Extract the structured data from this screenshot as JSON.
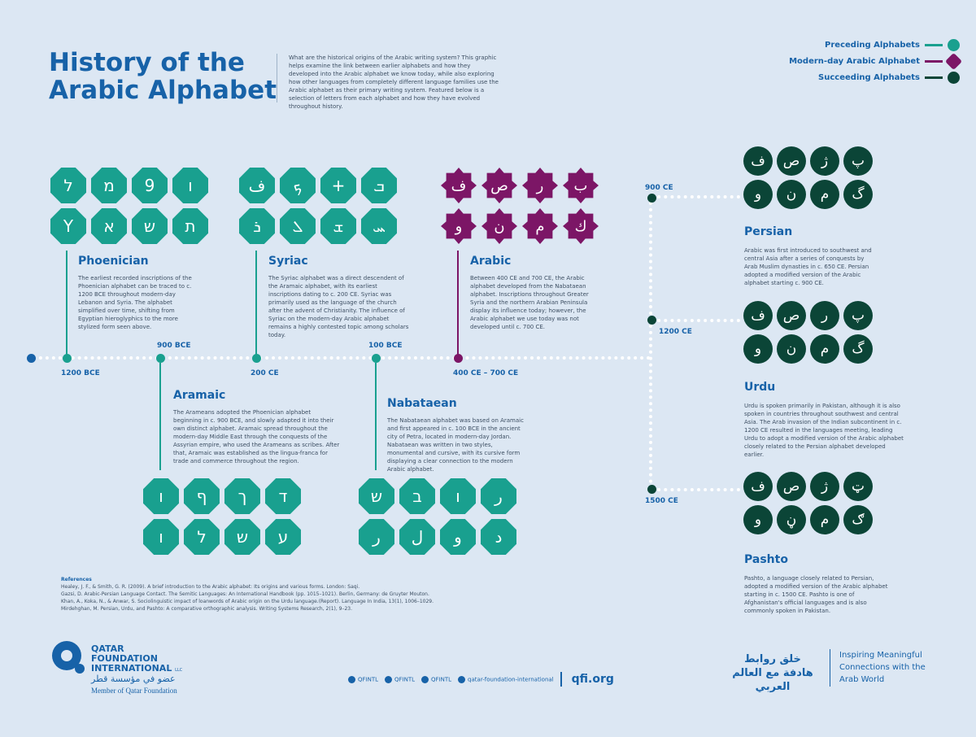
{
  "title": "History of the Arabic Alphabet",
  "intro": "What are the historical origins of the Arabic writing system? This graphic helps examine the link between earlier alphabets and how they developed into the Arabic alphabet we know today, while also exploring how other languages from completely different language families use the Arabic alphabet as their primary writing system. Featured below is a selection of letters from each alphabet and how they have evolved throughout history.",
  "legend": [
    {
      "label": "Preceding Alphabets",
      "color": "#19a08f"
    },
    {
      "label": "Modern-day Arabic Alphabet",
      "color": "#7c1666"
    },
    {
      "label": "Succeeding Alphabets",
      "color": "#0b4537"
    }
  ],
  "timeline": {
    "dates": [
      "1200 BCE",
      "900 BCE",
      "200 CE",
      "100 BCE",
      "400 CE – 700 CE",
      "900 CE",
      "1200 CE",
      "1500 CE"
    ]
  },
  "sections": {
    "phoenician": {
      "name": "Phoenician",
      "text": "The earliest recorded inscriptions of the Phoenician alphabet can be traced to c. 1200 BCE throughout modern-day Lebanon and Syria. The alphabet simplified over time, shifting from Egyptian hieroglyphics to the more stylized form seen above.",
      "letters": [
        "ל",
        "מ",
        "9",
        "ו",
        "Y",
        "א",
        "ש",
        "ת"
      ]
    },
    "syriac": {
      "name": "Syriac",
      "text": "The Syriac alphabet was a direct descendent of the Aramaic alphabet, with its earliest inscriptions dating to c. 200 CE. Syriac was primarily used as the language of the church after the advent of Christianity. The influence of Syriac on the modern-day Arabic alphabet remains a highly contested topic among scholars today.",
      "letters": [
        "ف",
        "ܟ",
        "+",
        "ܒ",
        "ܪ",
        "ܠ",
        "ܫ",
        "ܚ"
      ]
    },
    "arabic": {
      "name": "Arabic",
      "text": "Between 400 CE and 700 CE, the Arabic alphabet developed from the Nabataean alphabet. Inscriptions throughout Greater Syria and the northern Arabian Peninsula display its influence today; however, the Arabic alphabet we use today was not developed until c. 700 CE.",
      "letters": [
        "ف",
        "ص",
        "ر",
        "ب",
        "و",
        "ن",
        "م",
        "ك"
      ]
    },
    "aramaic": {
      "name": "Aramaic",
      "text": "The Arameans adopted the Phoenician alphabet beginning in c. 900 BCE, and slowly adapted it into their own distinct alphabet. Aramaic spread throughout the modern-day Middle East through the conquests of the Assyrian empire, who used the Arameans as scribes. After that, Aramaic was established as the lingua-franca for trade and commerce throughout the region.",
      "letters": [
        "ו",
        "ף",
        "ך",
        "ד",
        "ו",
        "ל",
        "ש",
        "ע"
      ]
    },
    "nabataean": {
      "name": "Nabataean",
      "text": "The Nabataean alphabet was based on Aramaic and first appeared in c. 100 BCE in the ancient city of Petra, located in modern-day Jordan. Nabataean was written in two styles, monumental and cursive, with its cursive form displaying a clear connection to the modern Arabic alphabet.",
      "letters": [
        "ש",
        "ב",
        "ו",
        "ر",
        "ر",
        "ل",
        "و",
        "د"
      ]
    },
    "persian": {
      "name": "Persian",
      "text": "Arabic was first introduced to southwest and central Asia after a series of conquests by Arab Muslim dynasties in c. 650 CE. Persian adopted a modified version of the Arabic alphabet starting c. 900 CE.",
      "letters": [
        "ف",
        "ص",
        "ژ",
        "پ",
        "و",
        "ن",
        "م",
        "گ"
      ]
    },
    "urdu": {
      "name": "Urdu",
      "text": "Urdu is spoken primarily in Pakistan, although it is also spoken in countries throughout southwest and central Asia. The Arab invasion of the Indian subcontinent in c. 1200 CE resulted in the languages meeting, leading Urdu to adopt a modified version of the Arabic alphabet closely related to the Persian alphabet developed earlier.",
      "letters": [
        "ف",
        "ص",
        "ر",
        "پ",
        "و",
        "ن",
        "م",
        "گ"
      ]
    },
    "pashto": {
      "name": "Pashto",
      "text": "Pashto, a language closely related to Persian, adopted a modified version of the Arabic alphabet starting in c. 1500 CE. Pashto is one of Afghanistan's official languages and is also commonly spoken in Pakistan.",
      "letters": [
        "ف",
        "ص",
        "ژ",
        "ټ",
        "و",
        "ڼ",
        "م",
        "ګ"
      ]
    }
  },
  "references": {
    "heading": "References",
    "items": [
      "Healey, J. F., & Smith, G. R. (2009). A brief introduction to the Arabic alphabet: Its origins and various forms. London: Saqi.",
      "Gazsi, D. Arabic-Persian Language Contact. The Semitic Languages: An International Handbook (pp. 1015–1021). Berlin, Germany: de Gruyter Mouton.",
      "Khan, A., Koka, N., & Anwar, S. Sociolinguistic impact of loanwords of Arabic origin on the Urdu language.(Report). Language In India, 13(1), 1006–1029.",
      "Mirdehghan, M. Persian, Urdu, and Pashto: A comparative orthographic analysis. Writing Systems Research, 2(1), 9–23."
    ]
  },
  "footer": {
    "org_name": "QATAR FOUNDATION INTERNATIONAL",
    "llc": "LLC",
    "arabic_name": "عضو في مؤسسة قطر",
    "member": "Member of Qatar Foundation",
    "social": [
      "QFINTL",
      "QFINTL",
      "QFINTL",
      "qatar-foundation-international"
    ],
    "site": "qfi.org",
    "arabic_tagline": "خلق روابط هادفة مع العالم العربي",
    "tagline": "Inspiring Meaningful Connections with the Arab World"
  }
}
